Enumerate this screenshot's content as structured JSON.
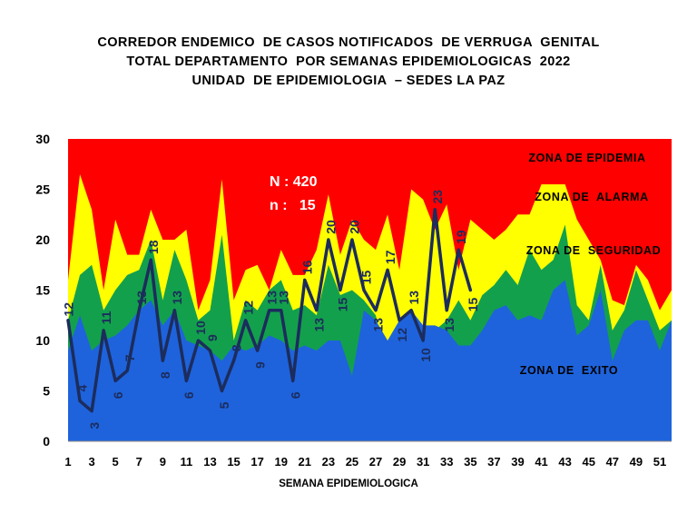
{
  "chart_data": {
    "type": "area",
    "title": [
      "CORREDOR ENDEMICO  DE CASOS NOTIFICADOS  DE VERRUGA  GENITAL",
      "TOTAL DEPARTAMENTO  POR SEMANAS EPIDEMIOLOGICAS  2022",
      "UNIDAD  DE EPIDEMIOLOGIA  – SEDES LA PAZ"
    ],
    "xlabel": "SEMANA EPIDEMIOLOGICA",
    "ylabel": "",
    "ylim": [
      0,
      30
    ],
    "yticks": [
      "0",
      "5",
      "10",
      "15",
      "20",
      "25",
      "30"
    ],
    "xlim": [
      1,
      52
    ],
    "xticks": [
      "1",
      "3",
      "5",
      "7",
      "9",
      "11",
      "13",
      "15",
      "17",
      "19",
      "21",
      "23",
      "25",
      "27",
      "29",
      "31",
      "33",
      "35",
      "37",
      "39",
      "41",
      "43",
      "45",
      "47",
      "49",
      "51"
    ],
    "weeks": [
      1,
      2,
      3,
      4,
      5,
      6,
      7,
      8,
      9,
      10,
      11,
      12,
      13,
      14,
      15,
      16,
      17,
      18,
      19,
      20,
      21,
      22,
      23,
      24,
      25,
      26,
      27,
      28,
      29,
      30,
      31,
      32,
      33,
      34,
      35,
      36,
      37,
      38,
      39,
      40,
      41,
      42,
      43,
      44,
      45,
      46,
      47,
      48,
      49,
      50,
      51,
      52
    ],
    "zones": [
      {
        "name": "ZONA DE  EXITO",
        "color": "#1e63dc",
        "values": [
          9,
          12.5,
          9,
          10,
          10.5,
          11.5,
          13,
          14,
          11.5,
          13,
          10,
          9.5,
          9,
          8,
          9.5,
          9,
          9.5,
          10.5,
          10,
          9,
          9.5,
          9,
          10,
          10,
          6.5,
          13,
          12,
          10,
          12,
          13,
          11.5,
          11.5,
          11,
          9.5,
          9.5,
          11,
          13,
          13.5,
          12,
          12.5,
          12,
          15,
          16,
          10.5,
          11.5,
          15,
          8,
          11,
          12,
          12,
          9,
          12
        ]
      },
      {
        "name": "ZONA DE  SEGURIDAD",
        "color": "#13a04c",
        "values": [
          12,
          16.5,
          17.5,
          13,
          15,
          16.5,
          17,
          20,
          14,
          19,
          16,
          12,
          13,
          20.5,
          10,
          14,
          13,
          15,
          16,
          13,
          13.5,
          12.5,
          17.5,
          14.5,
          15,
          14,
          12.5,
          7,
          8,
          11,
          9,
          11,
          12,
          14,
          12,
          14.5,
          15.5,
          17,
          15.5,
          19,
          17,
          18,
          21.5,
          13.5,
          12,
          17.5,
          11,
          13,
          17,
          14,
          11,
          12
        ]
      },
      {
        "name": "ZONA DE  ALARMA",
        "color": "#ffff00",
        "values": [
          16,
          26.5,
          23,
          15,
          22,
          18.5,
          18.5,
          23,
          20,
          20,
          21,
          13,
          16,
          26,
          14,
          17,
          17.5,
          15,
          19,
          16.5,
          16.5,
          19,
          24.5,
          18.5,
          22,
          20,
          19,
          22.5,
          17,
          25,
          24,
          21,
          23.5,
          17,
          22,
          21,
          20,
          21,
          22.5,
          22.5,
          25.5,
          25.5,
          25.5,
          22,
          20,
          18,
          14,
          13.5,
          17.5,
          16,
          13,
          15
        ]
      },
      {
        "name": "ZONA DE EPIDEMIA",
        "color": "#ff0000",
        "values": [
          30,
          30,
          30,
          30,
          30,
          30,
          30,
          30,
          30,
          30,
          30,
          30,
          30,
          30,
          30,
          30,
          30,
          30,
          30,
          30,
          30,
          30,
          30,
          30,
          30,
          30,
          30,
          30,
          30,
          30,
          30,
          30,
          30,
          30,
          30,
          30,
          30,
          30,
          30,
          30,
          30,
          30,
          30,
          30,
          30,
          30,
          30,
          30,
          30,
          30,
          30,
          30
        ]
      }
    ],
    "series": [
      {
        "name": "",
        "color": "#1c2c5c",
        "x": [
          1,
          2,
          3,
          4,
          5,
          6,
          7,
          8,
          9,
          10,
          11,
          12,
          13,
          14,
          15,
          16,
          17,
          18,
          19,
          20,
          21,
          22,
          23,
          24,
          25,
          26,
          27,
          28,
          29,
          30,
          31,
          32,
          33,
          34,
          35
        ],
        "values": [
          12,
          4,
          3,
          11,
          6,
          7,
          13,
          18,
          8,
          13,
          6,
          10,
          9,
          5,
          8,
          12,
          9,
          13,
          13,
          6,
          16,
          13,
          20,
          15,
          20,
          15,
          13,
          17,
          12,
          13,
          10,
          23,
          13,
          19,
          15
        ],
        "labels": [
          "12",
          "4",
          "3",
          "11",
          "6",
          "7",
          "13",
          "18",
          "8",
          "13",
          "6",
          "10",
          "9",
          "5",
          "8",
          "12",
          "9",
          "13",
          "13",
          "6",
          "16",
          "13",
          "20",
          "15",
          "20",
          "15",
          "13",
          "17",
          "12",
          "13",
          "10",
          "23",
          "13",
          "19",
          "15"
        ]
      }
    ],
    "annotations": [
      {
        "text": "N : 420",
        "color": "#ffffff"
      },
      {
        "text": "n :   15",
        "color": "#ffffff"
      }
    ],
    "grid": false,
    "legend": "zone labels inside plot area"
  }
}
